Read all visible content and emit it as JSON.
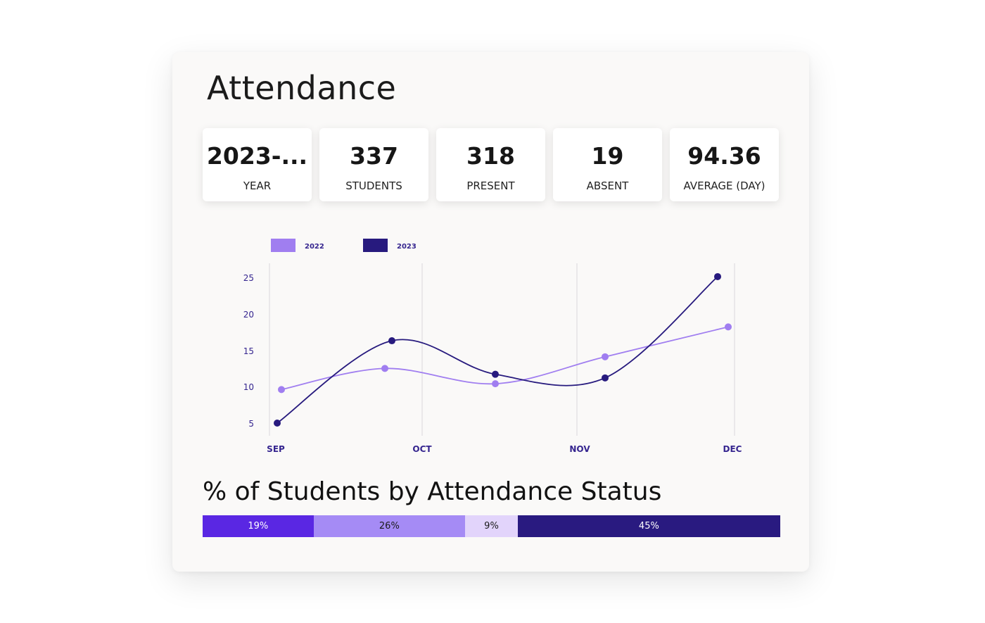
{
  "dashboard": {
    "title": "Attendance",
    "kpis": [
      {
        "value": "2023-...",
        "label": "YEAR"
      },
      {
        "value": "337",
        "label": "STUDENTS"
      },
      {
        "value": "318",
        "label": "PRESENT"
      },
      {
        "value": "19",
        "label": "ABSENT"
      },
      {
        "value": "94.36",
        "label": "AVERAGE (DAY)"
      }
    ]
  },
  "chart_data": {
    "type": "line",
    "smooth": true,
    "grid": "vertical",
    "legend_position": "top-left",
    "yticks": [
      5,
      10,
      15,
      20,
      25
    ],
    "ylim": [
      4,
      26
    ],
    "xlabels": [
      "SEP",
      "OCT",
      "NOV",
      "DEC"
    ],
    "series": [
      {
        "name": "2022",
        "color": "#a07ef0",
        "values": [
          9.6,
          12.5,
          10.4,
          14.1,
          18.2
        ]
      },
      {
        "name": "2023",
        "color": "#271a7e",
        "values": [
          5.0,
          16.3,
          11.7,
          11.2,
          25.1
        ]
      }
    ],
    "axis_color": "#35258f"
  },
  "status": {
    "title": "% of Students by Attendance Status",
    "segments": [
      {
        "label": "19%",
        "value": 19,
        "color": "#5a27e3",
        "text_color": "#ffffff"
      },
      {
        "label": "26%",
        "value": 26,
        "color": "#a58bf5",
        "text_color": "#1a1a1a"
      },
      {
        "label": "9%",
        "value": 9,
        "color": "#e2d4fb",
        "text_color": "#1a1a1a"
      },
      {
        "label": "45%",
        "value": 45,
        "color": "#291a80",
        "text_color": "#ffffff"
      }
    ]
  }
}
